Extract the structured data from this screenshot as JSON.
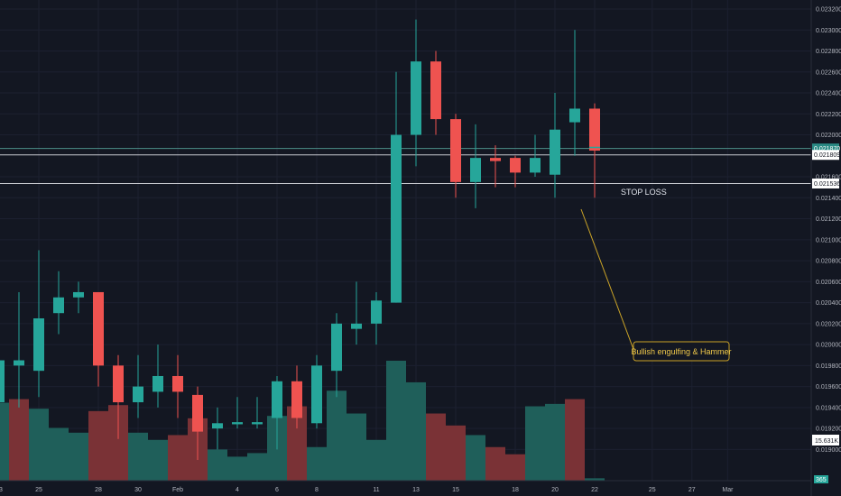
{
  "colors": {
    "background": "#131722",
    "grid": "#1c2030",
    "up": "#26a69a",
    "down": "#ef5350",
    "vol_up": "#1f5f5a",
    "vol_down": "#7a3236",
    "axis_text": "#b2b5be",
    "callout_border": "#c9a227",
    "callout_text": "#f0c94a"
  },
  "chart_data": {
    "type": "candlestick",
    "price_ylim": [
      0.0189,
      0.0232
    ],
    "y_ticks": [
      "0.019000",
      "0.019200",
      "0.019400",
      "0.019600",
      "0.019800",
      "0.020000",
      "0.020200",
      "0.020400",
      "0.020600",
      "0.020800",
      "0.021000",
      "0.021200",
      "0.021400",
      "0.021600",
      "0.022000",
      "0.022200",
      "0.022400",
      "0.022600",
      "0.022800",
      "0.023000",
      "0.023200"
    ],
    "x_ticks": [
      {
        "label": "23",
        "i": 0
      },
      {
        "label": "25",
        "i": 2
      },
      {
        "label": "28",
        "i": 5
      },
      {
        "label": "30",
        "i": 7
      },
      {
        "label": "Feb",
        "i": 9
      },
      {
        "label": "4",
        "i": 12
      },
      {
        "label": "6",
        "i": 14
      },
      {
        "label": "8",
        "i": 16
      },
      {
        "label": "11",
        "i": 19
      },
      {
        "label": "13",
        "i": 21
      },
      {
        "label": "15",
        "i": 23
      },
      {
        "label": "18",
        "i": 26
      },
      {
        "label": "20",
        "i": 28
      },
      {
        "label": "22",
        "i": 30
      },
      {
        "label": "25",
        "i": 32.9
      },
      {
        "label": "27",
        "i": 34.9
      },
      {
        "label": "Mar",
        "i": 36.7
      }
    ],
    "candles": [
      {
        "o": 0.01945,
        "h": 0.0201,
        "l": 0.0192,
        "c": 0.01985
      },
      {
        "o": 0.0198,
        "h": 0.0205,
        "l": 0.0194,
        "c": 0.01985
      },
      {
        "o": 0.01975,
        "h": 0.0209,
        "l": 0.0195,
        "c": 0.02025
      },
      {
        "o": 0.0203,
        "h": 0.0207,
        "l": 0.0201,
        "c": 0.02045
      },
      {
        "o": 0.02045,
        "h": 0.0206,
        "l": 0.0203,
        "c": 0.0205
      },
      {
        "o": 0.0205,
        "h": 0.0205,
        "l": 0.0196,
        "c": 0.0198
      },
      {
        "o": 0.0198,
        "h": 0.0199,
        "l": 0.0191,
        "c": 0.01945
      },
      {
        "o": 0.01945,
        "h": 0.0199,
        "l": 0.0193,
        "c": 0.0196
      },
      {
        "o": 0.01955,
        "h": 0.02,
        "l": 0.0194,
        "c": 0.0197
      },
      {
        "o": 0.0197,
        "h": 0.0199,
        "l": 0.0193,
        "c": 0.01955
      },
      {
        "o": 0.01952,
        "h": 0.0196,
        "l": 0.0189,
        "c": 0.01917
      },
      {
        "o": 0.0192,
        "h": 0.0194,
        "l": 0.019,
        "c": 0.01925
      },
      {
        "o": 0.01924,
        "h": 0.0195,
        "l": 0.0192,
        "c": 0.01926
      },
      {
        "o": 0.01924,
        "h": 0.0195,
        "l": 0.0192,
        "c": 0.01926
      },
      {
        "o": 0.0193,
        "h": 0.0197,
        "l": 0.019,
        "c": 0.01965
      },
      {
        "o": 0.01965,
        "h": 0.0198,
        "l": 0.0192,
        "c": 0.0193
      },
      {
        "o": 0.01925,
        "h": 0.0199,
        "l": 0.0192,
        "c": 0.0198
      },
      {
        "o": 0.01975,
        "h": 0.0203,
        "l": 0.0195,
        "c": 0.0202
      },
      {
        "o": 0.02015,
        "h": 0.0206,
        "l": 0.02,
        "c": 0.0202
      },
      {
        "o": 0.0202,
        "h": 0.0205,
        "l": 0.02,
        "c": 0.02042
      },
      {
        "o": 0.0204,
        "h": 0.0226,
        "l": 0.0204,
        "c": 0.022
      },
      {
        "o": 0.022,
        "h": 0.0231,
        "l": 0.0217,
        "c": 0.0227
      },
      {
        "o": 0.0227,
        "h": 0.0228,
        "l": 0.022,
        "c": 0.02215
      },
      {
        "o": 0.02215,
        "h": 0.0222,
        "l": 0.0214,
        "c": 0.02155
      },
      {
        "o": 0.02155,
        "h": 0.0221,
        "l": 0.0213,
        "c": 0.02178
      },
      {
        "o": 0.02178,
        "h": 0.0219,
        "l": 0.0215,
        "c": 0.02175
      },
      {
        "o": 0.02178,
        "h": 0.0218,
        "l": 0.0215,
        "c": 0.02164
      },
      {
        "o": 0.02164,
        "h": 0.022,
        "l": 0.0216,
        "c": 0.02178
      },
      {
        "o": 0.02162,
        "h": 0.0224,
        "l": 0.0214,
        "c": 0.02205
      },
      {
        "o": 0.02212,
        "h": 0.023,
        "l": 0.0218,
        "c": 0.02225
      },
      {
        "o": 0.02225,
        "h": 0.0223,
        "l": 0.0214,
        "c": 0.02185
      }
    ],
    "volume": [
      {
        "v": 0.65,
        "d": "up"
      },
      {
        "v": 0.68,
        "d": "down"
      },
      {
        "v": 0.6,
        "d": "up"
      },
      {
        "v": 0.44,
        "d": "up"
      },
      {
        "v": 0.4,
        "d": "up"
      },
      {
        "v": 0.58,
        "d": "down"
      },
      {
        "v": 0.63,
        "d": "down"
      },
      {
        "v": 0.4,
        "d": "up"
      },
      {
        "v": 0.34,
        "d": "up"
      },
      {
        "v": 0.38,
        "d": "down"
      },
      {
        "v": 0.52,
        "d": "down"
      },
      {
        "v": 0.26,
        "d": "up"
      },
      {
        "v": 0.2,
        "d": "up"
      },
      {
        "v": 0.23,
        "d": "up"
      },
      {
        "v": 0.54,
        "d": "up"
      },
      {
        "v": 0.62,
        "d": "down"
      },
      {
        "v": 0.28,
        "d": "up"
      },
      {
        "v": 0.75,
        "d": "up"
      },
      {
        "v": 0.56,
        "d": "up"
      },
      {
        "v": 0.34,
        "d": "up"
      },
      {
        "v": 1.0,
        "d": "up"
      },
      {
        "v": 0.82,
        "d": "up"
      },
      {
        "v": 0.56,
        "d": "down"
      },
      {
        "v": 0.46,
        "d": "down"
      },
      {
        "v": 0.38,
        "d": "up"
      },
      {
        "v": 0.28,
        "d": "down"
      },
      {
        "v": 0.22,
        "d": "down"
      },
      {
        "v": 0.62,
        "d": "up"
      },
      {
        "v": 0.64,
        "d": "up"
      },
      {
        "v": 0.68,
        "d": "down"
      },
      {
        "v": 0.02,
        "d": "up"
      }
    ],
    "horizontal_lines": [
      {
        "price": 0.02187,
        "color": "#4c8f8a"
      },
      {
        "price": 0.021809,
        "color": "#c8cad0"
      },
      {
        "price": 0.021536,
        "color": "#c8cad0"
      }
    ],
    "price_tags": [
      {
        "label": "0.021870",
        "price": 0.02187,
        "bg": "#2a8a84",
        "fg": "#ffffff"
      },
      {
        "label": "0.021809",
        "price": 0.021809,
        "bg": "#ffffff",
        "fg": "#131722"
      },
      {
        "label": "0.021536",
        "price": 0.021536,
        "bg": "#ffffff",
        "fg": "#131722"
      }
    ],
    "volume_tag": "15.631K",
    "corner_tag": "365",
    "annotations": {
      "stop_loss_label": "STOP LOSS",
      "callout_text": "Bullish engulfing & Hammer"
    }
  }
}
